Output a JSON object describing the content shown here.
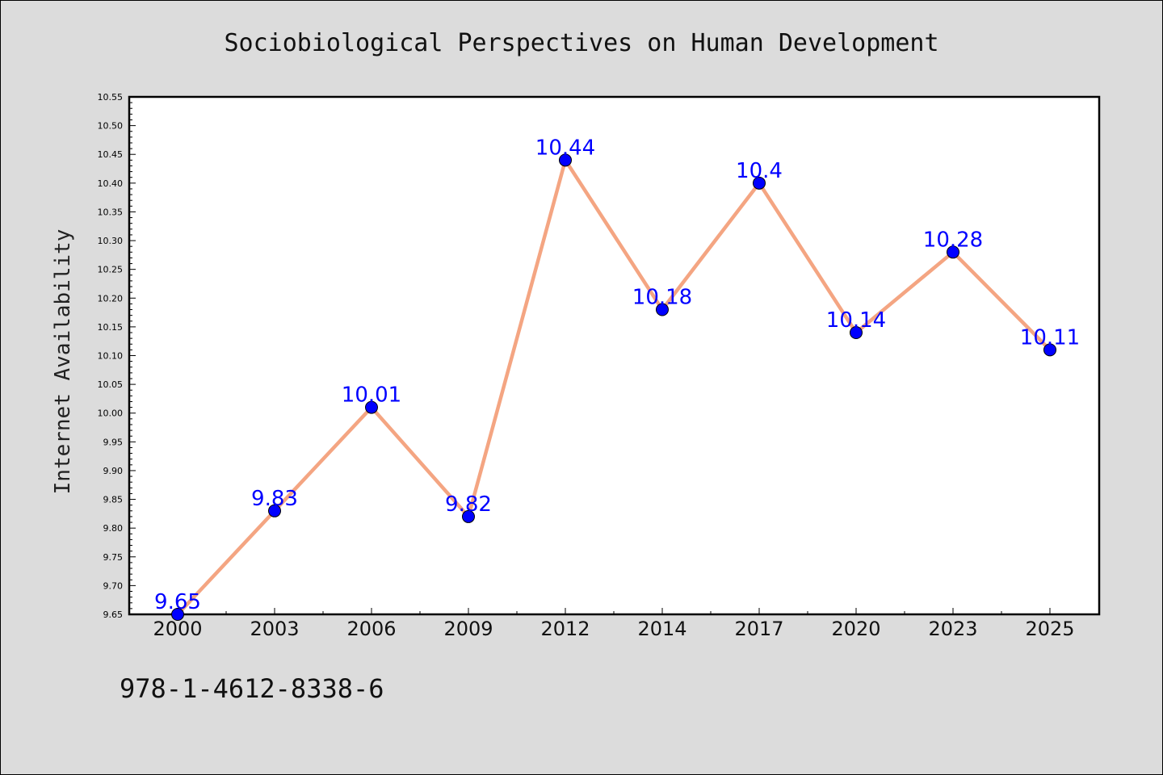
{
  "chart_data": {
    "type": "line",
    "title": "Sociobiological Perspectives on Human Development",
    "xlabel": "",
    "ylabel": "Internet Availability",
    "categories": [
      "2000",
      "2003",
      "2006",
      "2009",
      "2012",
      "2014",
      "2017",
      "2020",
      "2023",
      "2025"
    ],
    "values": [
      9.65,
      9.83,
      10.01,
      9.82,
      10.44,
      10.18,
      10.4,
      10.14,
      10.28,
      10.11
    ],
    "data_labels": [
      "9.65",
      "9.83",
      "10.01",
      "9.82",
      "10.44",
      "10.18",
      "10.4",
      "10.14",
      "10.28",
      "10.11"
    ],
    "ylim": [
      9.65,
      10.55
    ],
    "ytick_labels": [
      "9.65",
      "9.70",
      "9.75",
      "9.80",
      "9.85",
      "9.90",
      "9.95",
      "10.00",
      "10.05",
      "10.10",
      "10.15",
      "10.20",
      "10.25",
      "10.30",
      "10.35",
      "10.40",
      "10.45",
      "10.50",
      "10.55"
    ],
    "grid": false,
    "legend": "none",
    "line_color": "#f4a582",
    "marker_color": "#0000ff",
    "label_color": "#0000ff"
  },
  "footer": {
    "isbn": "978-1-4612-8338-6"
  }
}
